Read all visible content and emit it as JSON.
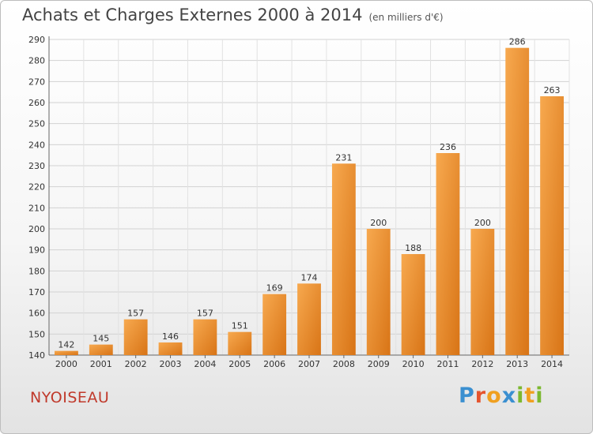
{
  "title": "Achats et Charges Externes 2000 à 2014",
  "subtitle": "(en milliers d'€)",
  "commune": "NYOISEAU",
  "logo": {
    "text": "Proxiti",
    "letters": [
      {
        "ch": "P",
        "color": "#3a8fd0"
      },
      {
        "ch": "r",
        "color": "#e5542e"
      },
      {
        "ch": "o",
        "color": "#f0a020"
      },
      {
        "ch": "x",
        "color": "#3a8fd0"
      },
      {
        "ch": "i",
        "color": "#7cb82f"
      },
      {
        "ch": "t",
        "color": "#f0a020"
      },
      {
        "ch": "i",
        "color": "#7cb82f"
      }
    ]
  },
  "chart_data": {
    "type": "bar",
    "title": "Achats et Charges Externes 2000 à 2014",
    "subtitle": "(en milliers d'€)",
    "categories": [
      "2000",
      "2001",
      "2002",
      "2003",
      "2004",
      "2005",
      "2006",
      "2007",
      "2008",
      "2009",
      "2010",
      "2011",
      "2012",
      "2013",
      "2014"
    ],
    "values": [
      142,
      145,
      157,
      146,
      157,
      151,
      169,
      174,
      231,
      200,
      188,
      236,
      200,
      286,
      263
    ],
    "ylim": [
      140,
      290
    ],
    "yticks": [
      140,
      150,
      160,
      170,
      180,
      190,
      200,
      210,
      220,
      230,
      240,
      250,
      260,
      270,
      280,
      290
    ],
    "grid": true,
    "bar_color_top": "#f7a94f",
    "bar_color_bottom": "#d87416"
  }
}
